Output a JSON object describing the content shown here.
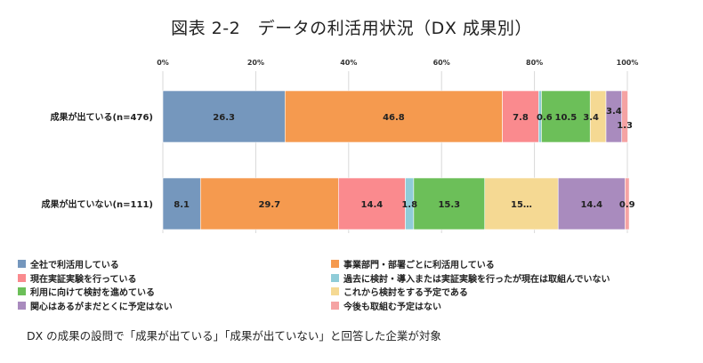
{
  "chart_data": {
    "type": "stacked-bar-horizontal",
    "title": "図表 2-2　データの利活用状況（DX 成果別）",
    "x_ticks": [
      "0%",
      "20%",
      "40%",
      "60%",
      "80%",
      "100%"
    ],
    "xlim": [
      0,
      100
    ],
    "categories": [
      "成果が出ている(n=476)",
      "成果が出ていない(n=111)"
    ],
    "series": [
      {
        "name": "全社で利活用している",
        "color": "#7597BD",
        "values": [
          26.3,
          8.1
        ],
        "labels": [
          "26.3",
          "8.1"
        ]
      },
      {
        "name": "事業部門・部署ごとに利活用している",
        "color": "#F59A4F",
        "values": [
          46.8,
          29.7
        ],
        "labels": [
          "46.8",
          "29.7"
        ]
      },
      {
        "name": "現在実証実験を行っている",
        "color": "#FA8A8E",
        "values": [
          7.8,
          14.4
        ],
        "labels": [
          "7.8",
          "14.4"
        ]
      },
      {
        "name": "過去に検討・導入または実証実験を行ったが現在は取組んでいない",
        "color": "#8FCCD8",
        "values": [
          0.6,
          1.8
        ],
        "labels": [
          "0.6",
          "1.8"
        ]
      },
      {
        "name": "利用に向けて検討を進めている",
        "color": "#6CBF59",
        "values": [
          10.5,
          15.3
        ],
        "labels": [
          "10.5",
          "15.3"
        ]
      },
      {
        "name": "これから検討をする予定である",
        "color": "#F5D993",
        "values": [
          3.4,
          15.8
        ],
        "labels": [
          "3.4",
          "15…"
        ]
      },
      {
        "name": "関心はあるがまだとくに予定はない",
        "color": "#A98BBE",
        "values": [
          3.4,
          14.4
        ],
        "labels": [
          "3.4",
          "14.4"
        ]
      },
      {
        "name": "今後も取組む予定はない",
        "color": "#F5A3A3",
        "values": [
          1.3,
          0.9
        ],
        "labels": [
          "1.3",
          "0.9"
        ]
      }
    ],
    "grid": true,
    "legend_position": "bottom"
  },
  "footnote": "DX の成果の設問で「成果が出ている」「成果が出ていない」と回答した企業が対象"
}
